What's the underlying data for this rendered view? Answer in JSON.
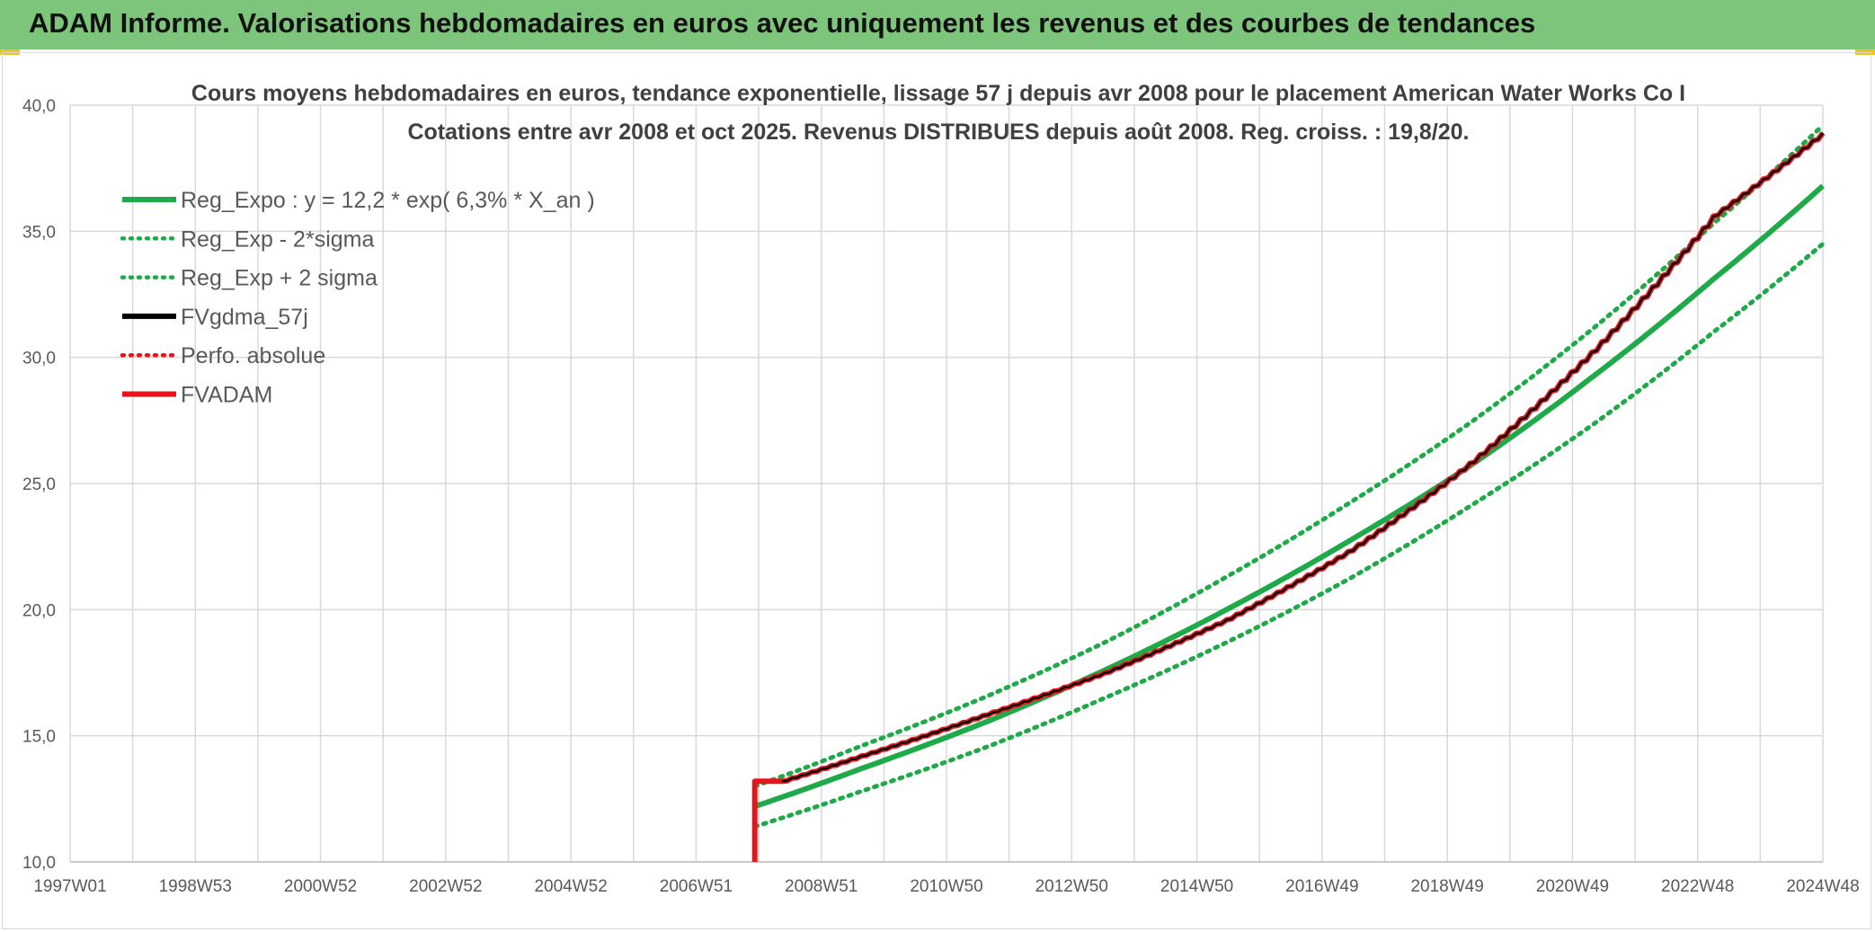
{
  "header": {
    "title": "ADAM Informe. Valorisations hebdomadaires en euros avec uniquement les revenus et des courbes de tendances"
  },
  "chart_data": {
    "type": "line",
    "title": [
      "Cours moyens hebdomadaires en euros, tendance exponentielle, lissage 57 j depuis avr 2008 pour le placement American Water Works Co I",
      "Cotations entre avr 2008 et oct 2025. Revenus DISTRIBUES depuis août 2008. Reg. croiss. : 19,8/20."
    ],
    "xlabel": "",
    "ylabel": "",
    "ylim": [
      10,
      40
    ],
    "xlim": [
      1997.0,
      2025.8
    ],
    "grid": true,
    "legend_position": "top-left",
    "x_tick_labels": [
      "1997W01",
      "1998W53",
      "2000W52",
      "2002W52",
      "2004W52",
      "2006W51",
      "2008W51",
      "2010W50",
      "2012W50",
      "2014W50",
      "2016W49",
      "2018W49",
      "2020W49",
      "2022W48",
      "2024W48"
    ],
    "y_tick_labels": [
      "10,0",
      "15,0",
      "20,0",
      "25,0",
      "30,0",
      "35,0",
      "40,0"
    ],
    "y_ticks": [
      10,
      15,
      20,
      25,
      30,
      35,
      40
    ],
    "legend": [
      {
        "label": "Reg_Expo : y = 12,2 * exp( 6,3% *  X_an )",
        "color": "#1faa4a",
        "style": "solid"
      },
      {
        "label": "Reg_Exp - 2*sigma",
        "color": "#1faa4a",
        "style": "dotted"
      },
      {
        "label": "Reg_Exp + 2 sigma",
        "color": "#1faa4a",
        "style": "dotted"
      },
      {
        "label": "FVgdma_57j",
        "color": "#000000",
        "style": "solid"
      },
      {
        "label": "Perfo. absolue",
        "color": "#e8141b",
        "style": "dotted"
      },
      {
        "label": "FVADAM",
        "color": "#e8141b",
        "style": "solid"
      }
    ],
    "series": [
      {
        "name": "Reg_Expo : y = 12,2 * exp( 6,3% *  X_an )",
        "x": [
          2008.25,
          2010,
          2012,
          2014,
          2016,
          2018,
          2020,
          2022,
          2024,
          2025.8
        ],
        "y": [
          12.2,
          13.7,
          15.5,
          17.6,
          20.0,
          22.7,
          25.7,
          29.2,
          33.1,
          36.8
        ]
      },
      {
        "name": "Reg_Exp - 2*sigma",
        "x": [
          2008.25,
          2010,
          2012,
          2014,
          2016,
          2018,
          2020,
          2022,
          2024,
          2025.8
        ],
        "y": [
          11.4,
          12.8,
          14.5,
          16.5,
          18.7,
          21.2,
          24.1,
          27.3,
          31.0,
          34.5
        ]
      },
      {
        "name": "Reg_Exp + 2 sigma",
        "x": [
          2008.25,
          2010,
          2012,
          2014,
          2016,
          2018,
          2020,
          2022,
          2024,
          2025.8
        ],
        "y": [
          13.0,
          14.6,
          16.5,
          18.7,
          21.3,
          24.2,
          27.4,
          31.1,
          35.3,
          39.2
        ]
      },
      {
        "name": "FVADAM",
        "x": [
          2008.25,
          2008.25,
          2008.7,
          2010,
          2012,
          2014,
          2016,
          2018,
          2020,
          2022,
          2024,
          2025.8
        ],
        "y": [
          10.0,
          13.2,
          13.2,
          14.2,
          15.8,
          17.5,
          19.6,
          22.3,
          25.8,
          30.2,
          35.6,
          38.9
        ]
      },
      {
        "name": "FVgdma_57j",
        "x": [
          2008.7,
          2010,
          2012,
          2014,
          2016,
          2018,
          2020,
          2022,
          2024,
          2025.8
        ],
        "y": [
          13.2,
          14.2,
          15.8,
          17.5,
          19.6,
          22.3,
          25.8,
          30.2,
          35.6,
          38.9
        ]
      }
    ]
  }
}
